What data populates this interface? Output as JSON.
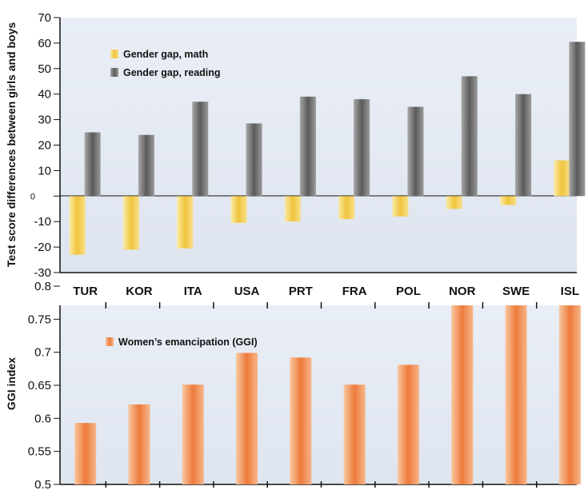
{
  "chart_data": [
    {
      "type": "bar",
      "ylabel": "Test score differences between girls and boys",
      "ylim": [
        -30,
        70
      ],
      "yticks": [
        "70",
        "60",
        "50",
        "40",
        "30",
        "20",
        "10",
        "0",
        "-10",
        "-20",
        "-30"
      ],
      "categories": [
        "TUR",
        "KOR",
        "ITA",
        "USA",
        "PRT",
        "FRA",
        "POL",
        "NOR",
        "SWE",
        "ISL"
      ],
      "legend_position": "top-left",
      "grid": false,
      "series": [
        {
          "name": "Gender gap, math",
          "color": "#f0c850",
          "values": [
            -23,
            -21,
            -20.5,
            -10.5,
            -10,
            -9,
            -8,
            -5,
            -3.5,
            14
          ]
        },
        {
          "name": "Gender gap, reading",
          "color": "#808080",
          "values": [
            25,
            24,
            37,
            28.5,
            39,
            38,
            35,
            47,
            40,
            60.5
          ]
        }
      ]
    },
    {
      "type": "bar",
      "ylabel": "GGI index",
      "ylim": [
        0.5,
        0.8
      ],
      "yticks": [
        "0.8",
        "0.75",
        "0.7",
        "0.65",
        "0.6",
        "0.55",
        "0.5"
      ],
      "categories": [
        "TUR",
        "KOR",
        "ITA",
        "USA",
        "PRT",
        "FRA",
        "POL",
        "NOR",
        "SWE",
        "ISL"
      ],
      "legend_position": "top-left",
      "grid": false,
      "series": [
        {
          "name": "Women’s emancipation (GGI)",
          "color": "#f08040",
          "values": [
            0.593,
            0.621,
            0.651,
            0.699,
            0.692,
            0.651,
            0.681,
            0.8,
            0.807,
            0.779
          ]
        }
      ]
    }
  ]
}
